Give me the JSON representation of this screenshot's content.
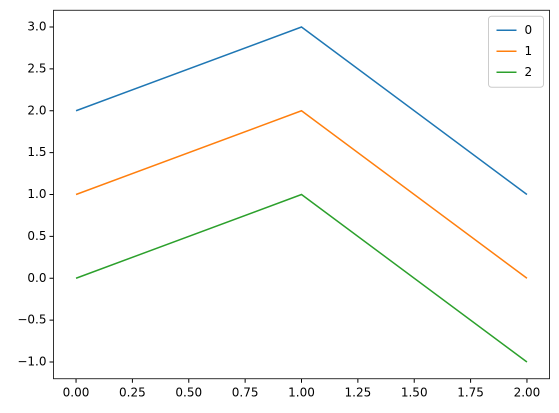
{
  "chart_data": {
    "type": "line",
    "x": [
      0,
      1,
      2
    ],
    "series": [
      {
        "name": "0",
        "color": "#1f77b4",
        "values": [
          2,
          3,
          1
        ]
      },
      {
        "name": "1",
        "color": "#ff7f0e",
        "values": [
          1,
          2,
          0
        ]
      },
      {
        "name": "2",
        "color": "#2ca02c",
        "values": [
          0,
          1,
          -1
        ]
      }
    ],
    "xlim": [
      -0.1,
      2.1
    ],
    "xticks": [
      {
        "value": 0,
        "label": "0.00"
      },
      {
        "value": 0.25,
        "label": "0.25"
      },
      {
        "value": 0.5,
        "label": "0.50"
      },
      {
        "value": 0.75,
        "label": "0.75"
      },
      {
        "value": 1,
        "label": "1.00"
      },
      {
        "value": 1.25,
        "label": "1.25"
      },
      {
        "value": 1.5,
        "label": "1.50"
      },
      {
        "value": 1.75,
        "label": "1.75"
      },
      {
        "value": 2,
        "label": "2.00"
      }
    ],
    "ylim": [
      -1.2,
      3.2
    ],
    "yticks": [
      {
        "value": -1,
        "label": "−1.0"
      },
      {
        "value": -0.5,
        "label": "−0.5"
      },
      {
        "value": 0,
        "label": "0.0"
      },
      {
        "value": 0.5,
        "label": "0.5"
      },
      {
        "value": 1,
        "label": "1.0"
      },
      {
        "value": 1.5,
        "label": "1.5"
      },
      {
        "value": 2,
        "label": "2.0"
      },
      {
        "value": 2.5,
        "label": "2.5"
      },
      {
        "value": 3,
        "label": "3.0"
      }
    ],
    "legend": "upper right"
  }
}
